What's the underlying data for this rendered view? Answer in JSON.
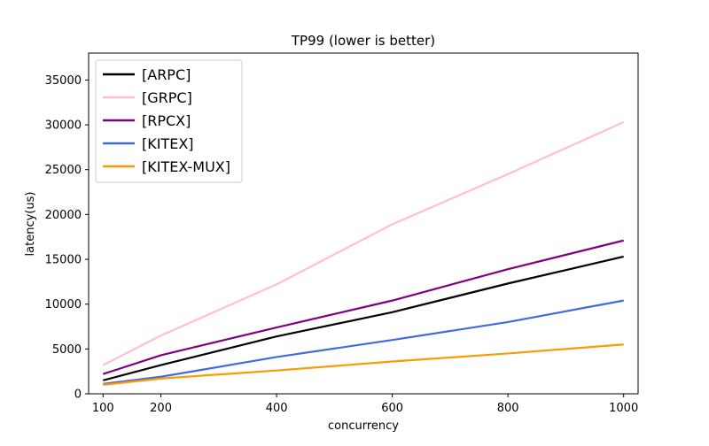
{
  "chart_data": {
    "type": "line",
    "title": "TP99 (lower is better)",
    "xlabel": "concurrency",
    "ylabel": "latency(us)",
    "x": [
      100,
      200,
      400,
      600,
      800,
      1000
    ],
    "x_ticks": [
      100,
      200,
      400,
      600,
      800,
      1000
    ],
    "y_ticks": [
      0,
      5000,
      10000,
      15000,
      20000,
      25000,
      30000,
      35000
    ],
    "xlim": [
      75,
      1025
    ],
    "ylim": [
      0,
      38000
    ],
    "grid": false,
    "legend_position": "upper-left",
    "series": [
      {
        "name": "[ARPC]",
        "color": "#000000",
        "values": [
          1500,
          3200,
          6400,
          9100,
          12300,
          15300
        ]
      },
      {
        "name": "[GRPC]",
        "color": "#ffc0cb",
        "values": [
          3200,
          6500,
          12200,
          18900,
          24500,
          30300
        ]
      },
      {
        "name": "[RPCX]",
        "color": "#800080",
        "values": [
          2200,
          4300,
          7400,
          10400,
          13900,
          17100
        ]
      },
      {
        "name": "[KITEX]",
        "color": "#4169e1",
        "values": [
          1100,
          1900,
          4100,
          6000,
          8000,
          10400
        ]
      },
      {
        "name": "[KITEX-MUX]",
        "color": "#ff9900",
        "values": [
          1000,
          1700,
          2600,
          3600,
          4500,
          5500
        ]
      }
    ]
  }
}
